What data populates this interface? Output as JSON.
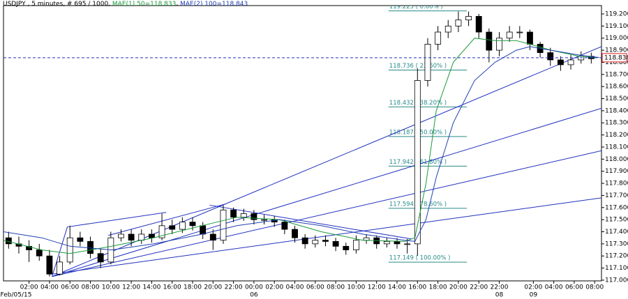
{
  "chart_data": {
    "type": "candlestick",
    "title": "USDJPY , 5 minutes, # 695 / 1000,",
    "xlim": [
      0,
      702
    ],
    "ylim": [
      116.994,
      119.269
    ],
    "yticks": [
      {
        "value": 117.0,
        "label": "117.000"
      },
      {
        "value": 117.1,
        "label": "117.100"
      },
      {
        "value": 117.2,
        "label": "117.200"
      },
      {
        "value": 117.3,
        "label": "117.300"
      },
      {
        "value": 117.4,
        "label": "117.400"
      },
      {
        "value": 117.5,
        "label": "117.500"
      },
      {
        "value": 117.6,
        "label": "117.600"
      },
      {
        "value": 117.7,
        "label": "117.700"
      },
      {
        "value": 117.8,
        "label": "117.800"
      },
      {
        "value": 117.9,
        "label": "117.900"
      },
      {
        "value": 118.0,
        "label": "118.000"
      },
      {
        "value": 118.1,
        "label": "118.100"
      },
      {
        "value": 118.2,
        "label": "118.200"
      },
      {
        "value": 118.3,
        "label": "118.300"
      },
      {
        "value": 118.4,
        "label": "118.400"
      },
      {
        "value": 118.5,
        "label": "118.500"
      },
      {
        "value": 118.6,
        "label": "118.600"
      },
      {
        "value": 118.7,
        "label": "118.700"
      },
      {
        "value": 118.8,
        "label": "118.800"
      },
      {
        "value": 118.9,
        "label": "118.900"
      },
      {
        "value": 119.0,
        "label": "119.000"
      },
      {
        "value": 119.1,
        "label": "119.100"
      },
      {
        "value": 119.2,
        "label": "119.200"
      }
    ],
    "xticks": [
      {
        "value": 30,
        "label": "02:00"
      },
      {
        "value": 54,
        "label": "04:00"
      },
      {
        "value": 78,
        "label": "06:00"
      },
      {
        "value": 102,
        "label": "08:00"
      },
      {
        "value": 126,
        "label": "10:00"
      },
      {
        "value": 150,
        "label": "12:00"
      },
      {
        "value": 174,
        "label": "14:00"
      },
      {
        "value": 198,
        "label": "16:00"
      },
      {
        "value": 222,
        "label": "18:00"
      },
      {
        "value": 246,
        "label": "20:00"
      },
      {
        "value": 270,
        "label": "22:00"
      },
      {
        "value": 294,
        "label": "00:00"
      },
      {
        "value": 318,
        "label": "02:00"
      },
      {
        "value": 342,
        "label": "04:00"
      },
      {
        "value": 366,
        "label": "06:00"
      },
      {
        "value": 390,
        "label": "08:00"
      },
      {
        "value": 414,
        "label": "10:00"
      },
      {
        "value": 438,
        "label": "12:00"
      },
      {
        "value": 462,
        "label": "14:00"
      },
      {
        "value": 486,
        "label": "16:00"
      },
      {
        "value": 510,
        "label": "18:00"
      },
      {
        "value": 534,
        "label": "20:00"
      },
      {
        "value": 558,
        "label": "22:00"
      },
      {
        "value": 582,
        "label": "22:00"
      },
      {
        "value": 622,
        "label": "02:00"
      },
      {
        "value": 646,
        "label": "04:00"
      },
      {
        "value": 670,
        "label": "06:00"
      },
      {
        "value": 694,
        "label": "08:00"
      }
    ],
    "date_labels": [
      {
        "value": 0,
        "label": "Feb/05/15"
      },
      {
        "value": 294,
        "label": "06"
      },
      {
        "value": 582,
        "label": "08"
      },
      {
        "value": 622,
        "label": "09"
      }
    ],
    "x": [
      6,
      18,
      30,
      42,
      54,
      66,
      78,
      90,
      102,
      114,
      126,
      138,
      150,
      162,
      174,
      186,
      198,
      210,
      222,
      234,
      246,
      258,
      270,
      282,
      294,
      306,
      318,
      330,
      342,
      354,
      366,
      378,
      390,
      402,
      414,
      426,
      438,
      450,
      462,
      474,
      486,
      498,
      510,
      522,
      534,
      546,
      558,
      570,
      582,
      594,
      606,
      618,
      630,
      642,
      654,
      666,
      678,
      690
    ],
    "open": [
      117.35,
      117.3,
      117.28,
      117.25,
      117.2,
      117.05,
      117.15,
      117.35,
      117.32,
      117.22,
      117.15,
      117.35,
      117.38,
      117.33,
      117.38,
      117.35,
      117.45,
      117.42,
      117.48,
      117.45,
      117.38,
      117.33,
      117.58,
      117.52,
      117.55,
      117.5,
      117.5,
      117.48,
      117.42,
      117.35,
      117.3,
      117.33,
      117.32,
      117.28,
      117.25,
      117.33,
      117.35,
      117.3,
      117.32,
      117.3,
      117.3,
      118.65,
      118.95,
      119.05,
      119.1,
      119.15,
      119.18,
      119.05,
      118.9,
      119.0,
      119.05,
      119.05,
      118.95,
      118.88,
      118.82,
      118.78,
      118.82,
      118.85
    ],
    "high": [
      117.4,
      117.36,
      117.33,
      117.3,
      117.25,
      117.2,
      117.45,
      117.4,
      117.36,
      117.26,
      117.4,
      117.42,
      117.42,
      117.42,
      117.42,
      117.55,
      117.5,
      117.52,
      117.52,
      117.48,
      117.42,
      117.62,
      117.6,
      117.59,
      117.58,
      117.54,
      117.53,
      117.5,
      117.45,
      117.38,
      117.37,
      117.37,
      117.35,
      117.31,
      117.37,
      117.38,
      117.37,
      117.35,
      117.35,
      117.34,
      118.75,
      119.0,
      119.1,
      119.15,
      119.22,
      119.22,
      119.2,
      119.08,
      119.05,
      119.1,
      119.1,
      119.07,
      118.97,
      118.92,
      118.85,
      118.86,
      118.89,
      118.88
    ],
    "low": [
      117.26,
      117.22,
      117.15,
      117.16,
      117.03,
      117.04,
      117.13,
      117.28,
      117.18,
      117.1,
      117.13,
      117.32,
      117.28,
      117.3,
      117.31,
      117.33,
      117.38,
      117.39,
      117.41,
      117.34,
      117.25,
      117.3,
      117.48,
      117.49,
      117.46,
      117.46,
      117.44,
      117.38,
      117.31,
      117.26,
      117.27,
      117.28,
      117.24,
      117.21,
      117.22,
      117.3,
      117.26,
      117.27,
      117.26,
      117.22,
      117.2,
      118.6,
      118.9,
      119.0,
      119.05,
      119.1,
      119.0,
      118.8,
      118.85,
      118.97,
      119.0,
      118.9,
      118.84,
      118.77,
      118.73,
      118.74,
      118.79,
      118.79
    ],
    "close": [
      117.3,
      117.28,
      117.25,
      117.2,
      117.05,
      117.15,
      117.35,
      117.32,
      117.22,
      117.15,
      117.35,
      117.38,
      117.33,
      117.38,
      117.35,
      117.45,
      117.42,
      117.48,
      117.45,
      117.38,
      117.33,
      117.58,
      117.52,
      117.55,
      117.5,
      117.5,
      117.48,
      117.42,
      117.35,
      117.3,
      117.33,
      117.32,
      117.28,
      117.25,
      117.33,
      117.35,
      117.3,
      117.32,
      117.3,
      117.3,
      118.65,
      118.95,
      119.05,
      119.1,
      119.15,
      119.18,
      119.05,
      118.9,
      119.0,
      119.05,
      119.05,
      118.95,
      118.88,
      118.82,
      118.78,
      118.82,
      118.85,
      118.83
    ],
    "series": [
      {
        "name": "MAE(1) 50=118.833",
        "color": "#1a9a3a",
        "x": [
          0,
          45,
          78,
          127,
          176,
          233,
          274,
          324,
          373,
          422,
          471,
          483,
          496,
          508,
          528,
          553,
          577,
          602,
          618,
          643,
          676,
          699
        ],
        "values": [
          117.33,
          117.25,
          117.22,
          117.28,
          117.35,
          117.45,
          117.52,
          117.5,
          117.4,
          117.33,
          117.32,
          117.35,
          117.8,
          118.4,
          118.8,
          119.0,
          118.98,
          118.98,
          118.95,
          118.9,
          118.85,
          118.84
        ]
      },
      {
        "name": "MAE(2) 100=118.843",
        "color": "#2040b0",
        "x": [
          0,
          45,
          78,
          127,
          176,
          233,
          274,
          324,
          373,
          422,
          471,
          483,
          496,
          508,
          528,
          553,
          577,
          602,
          618,
          643,
          676,
          699
        ],
        "values": [
          117.4,
          117.35,
          117.28,
          117.25,
          117.3,
          117.38,
          117.45,
          117.5,
          117.45,
          117.38,
          117.33,
          117.32,
          117.5,
          117.85,
          118.3,
          118.65,
          118.8,
          118.9,
          118.93,
          118.9,
          118.86,
          118.84
        ]
      }
    ],
    "current_price": 118.838,
    "fib_x": [
      452,
      544
    ],
    "fib_levels": [
      {
        "value": 119.225,
        "label": "119.225 ( 0.00% )"
      },
      {
        "value": 118.736,
        "label": "118.736 ( 23.60% )"
      },
      {
        "value": 118.432,
        "label": "118.432 ( 38.20% )"
      },
      {
        "value": 118.187,
        "label": "118.187 ( 50.00% )"
      },
      {
        "value": 117.942,
        "label": "117.942 ( 61.80% )"
      },
      {
        "value": 117.594,
        "label": "117.594 ( 78.60% )"
      },
      {
        "value": 117.149,
        "label": "117.149 ( 100.00% )"
      }
    ],
    "trendlines": [
      {
        "x": [
          57,
          702
        ],
        "y": [
          117.03,
          118.93
        ]
      },
      {
        "x": [
          57,
          702
        ],
        "y": [
          117.03,
          118.42
        ]
      },
      {
        "x": [
          57,
          702
        ],
        "y": [
          117.03,
          118.07
        ]
      },
      {
        "x": [
          57,
          702
        ],
        "y": [
          117.05,
          117.68
        ]
      },
      {
        "x": [
          57,
          75
        ],
        "y": [
          117.03,
          117.44
        ]
      },
      {
        "x": [
          75,
          191
        ],
        "y": [
          117.44,
          117.56
        ]
      },
      {
        "x": [
          123,
          261
        ],
        "y": [
          117.37,
          117.63
        ]
      },
      {
        "x": [
          242,
          479
        ],
        "y": [
          117.62,
          117.34
        ]
      }
    ]
  }
}
